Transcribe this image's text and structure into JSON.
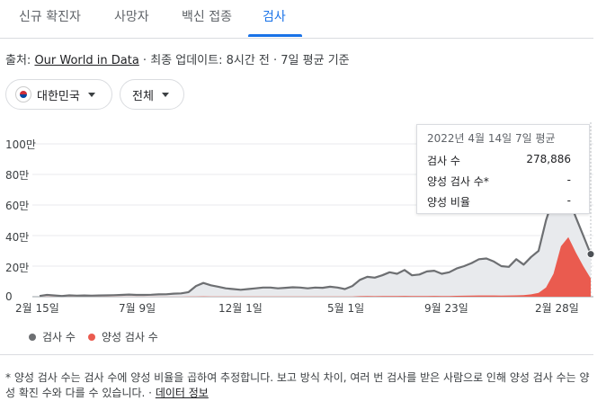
{
  "tabs": [
    {
      "label": "신규 확진자",
      "active": false
    },
    {
      "label": "사망자",
      "active": false
    },
    {
      "label": "백신 접종",
      "active": false
    },
    {
      "label": "검사",
      "active": true
    }
  ],
  "source": {
    "prefix": "출처: ",
    "link": "Our World in Data",
    "suffix": " · 최종 업데이트: 8시간 전 · 7일 평균 기준"
  },
  "filters": {
    "region": "대한민국",
    "range": "전체"
  },
  "colors": {
    "tests_line": "#6d6f72",
    "tests_area": "#e8eaed",
    "positive": "#ea5b4f",
    "accent": "#1a73e8"
  },
  "tooltip": {
    "title": "2022년 4월 14일 7일 평균",
    "rows": [
      {
        "label": "검사 수",
        "value": "278,886"
      },
      {
        "label": "양성 검사 수*",
        "value": "-"
      },
      {
        "label": "양성 비율",
        "value": "-"
      }
    ]
  },
  "legend": [
    {
      "label": "검사 수",
      "color": "#6d6f72"
    },
    {
      "label": "양성 검사 수",
      "color": "#ea5b4f"
    }
  ],
  "footnote": {
    "text": "* 양성 검사 수는 검사 수에 양성 비율을 곱하여 추정합니다. 보고 방식 차이, 여러 번 검사를 받은 사람으로 인해 양성 검사 수는 양성 확진 수와 다를 수 있습니다. · ",
    "link": "데이터 정보"
  },
  "chart_data": {
    "type": "area",
    "y_tick_labels": [
      "100만",
      "80만",
      "60만",
      "40만",
      "20만",
      "0"
    ],
    "ylim": [
      0,
      1000000
    ],
    "yticks": [
      1000000,
      800000,
      600000,
      400000,
      200000,
      0
    ],
    "x_tick_labels": [
      "2월 15일",
      "7월 9일",
      "12월 1일",
      "5월 1일",
      "9월 23일",
      "2월 28일"
    ],
    "grid": true,
    "series": [
      {
        "name": "검사 수",
        "values": [
          5000,
          12000,
          8000,
          5000,
          9000,
          7000,
          8000,
          7000,
          8000,
          9000,
          10000,
          12000,
          14000,
          12000,
          12000,
          13000,
          15000,
          16000,
          20000,
          22000,
          30000,
          70000,
          90000,
          75000,
          65000,
          55000,
          50000,
          45000,
          50000,
          55000,
          60000,
          60000,
          55000,
          58000,
          62000,
          60000,
          55000,
          60000,
          58000,
          65000,
          60000,
          50000,
          70000,
          110000,
          130000,
          125000,
          140000,
          160000,
          150000,
          175000,
          140000,
          145000,
          165000,
          170000,
          150000,
          160000,
          185000,
          200000,
          220000,
          245000,
          250000,
          230000,
          200000,
          195000,
          245000,
          210000,
          260000,
          300000,
          500000,
          650000,
          740000,
          650000,
          520000,
          400000,
          278886
        ]
      },
      {
        "name": "양성 검사 수",
        "values": [
          0,
          500,
          300,
          300,
          300,
          400,
          400,
          300,
          300,
          300,
          300,
          400,
          400,
          300,
          300,
          300,
          400,
          500,
          600,
          700,
          1000,
          2000,
          2500,
          2000,
          1700,
          1500,
          1400,
          1300,
          1400,
          1500,
          1700,
          1700,
          1600,
          1700,
          1800,
          1700,
          1500,
          1700,
          1600,
          1800,
          1700,
          1500,
          2000,
          3500,
          4000,
          3800,
          4200,
          4800,
          4500,
          5200,
          4300,
          4400,
          5000,
          5300,
          4600,
          5000,
          5800,
          6500,
          7500,
          8000,
          8500,
          8000,
          7500,
          8000,
          9000,
          10000,
          15000,
          25000,
          60000,
          150000,
          330000,
          390000,
          290000,
          200000,
          120000
        ]
      }
    ]
  }
}
